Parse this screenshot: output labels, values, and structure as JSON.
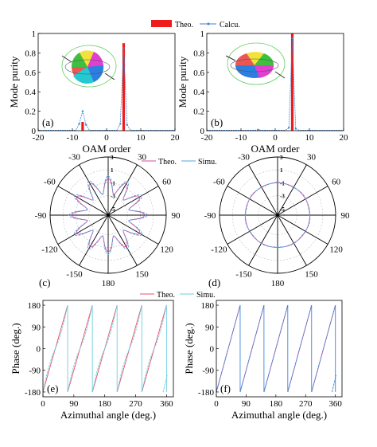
{
  "colors": {
    "theo_bar": "#ee1c1c",
    "calcu": "#3a86d8",
    "theo_line": "#d64ea3",
    "simu": "#4fa8df",
    "purple": "#8a3db2",
    "grid": "#bdbdbd"
  },
  "legend_top": {
    "theo": "Theo.",
    "calcu": "Calcu."
  },
  "legend_polar": {
    "theo": "Theo.",
    "simu": "Simu."
  },
  "legend_phase": {
    "theo": "Theo.",
    "simu": "Simu."
  },
  "chart_data": [
    {
      "id": "a",
      "type": "bar",
      "panel_label": "(a)",
      "xlabel": "OAM order",
      "ylabel": "Mode purity",
      "xlim": [
        -20,
        20
      ],
      "ylim": [
        0,
        1
      ],
      "xticks": [
        "-20",
        "-10",
        "0",
        "10",
        "20"
      ],
      "yticks": [
        "0",
        "0.2",
        "0.4",
        "0.6",
        "0.8",
        "1"
      ],
      "series": [
        {
          "name": "Theo.",
          "x": [
            -7,
            5
          ],
          "values": [
            0.09,
            0.9
          ]
        },
        {
          "name": "Calcu.",
          "x": [
            -8,
            -7,
            -6,
            4,
            5,
            6
          ],
          "values": [
            0.07,
            0.2,
            0.06,
            0.07,
            0.85,
            0.06
          ]
        }
      ]
    },
    {
      "id": "b",
      "type": "bar",
      "panel_label": "(b)",
      "xlabel": "OAM order",
      "ylabel": "Mode purity",
      "xlim": [
        -20,
        20
      ],
      "ylim": [
        0,
        1
      ],
      "xticks": [
        "-20",
        "-10",
        "0",
        "10",
        "20"
      ],
      "yticks": [
        "0",
        "0.2",
        "0.4",
        "0.6",
        "0.8",
        "1"
      ],
      "series": [
        {
          "name": "Theo.",
          "x": [
            5
          ],
          "values": [
            1.0
          ]
        },
        {
          "name": "Calcu.",
          "x": [
            4,
            5,
            6,
            -5
          ],
          "values": [
            0.03,
            0.95,
            0.02,
            0.01
          ]
        }
      ]
    },
    {
      "id": "c",
      "type": "line",
      "subtype": "polar",
      "panel_label": "(c)",
      "angle_labels": [
        "0",
        "30",
        "60",
        "90",
        "120",
        "150",
        "180",
        "-150",
        "-120",
        "-90",
        "-60",
        "-30"
      ],
      "radial_ticks": [
        "3",
        "1",
        "-1",
        "-3",
        "-5"
      ],
      "series": [
        {
          "name": "Theo.",
          "petals": 12,
          "r_mean": -1.5,
          "r_amp": 1.2
        },
        {
          "name": "Simu.",
          "petals": 12,
          "r_mean": -1.3,
          "r_amp": 1.4
        }
      ]
    },
    {
      "id": "d",
      "type": "line",
      "subtype": "polar",
      "panel_label": "(d)",
      "angle_labels": [
        "0",
        "30",
        "60",
        "90",
        "120",
        "150",
        "180",
        "-150",
        "-120",
        "-90",
        "-60",
        "-30"
      ],
      "radial_ticks": [
        "3",
        "1",
        "-1",
        "-3",
        "-5"
      ],
      "series": [
        {
          "name": "Theo.",
          "petals": 0,
          "r_mean": -1.0,
          "r_amp": 0
        },
        {
          "name": "Simu.",
          "petals": 0,
          "r_mean": -1.0,
          "r_amp": 0.08
        }
      ]
    },
    {
      "id": "e",
      "type": "line",
      "panel_label": "(e)",
      "xlabel": "Azimuthal angle (deg.)",
      "ylabel": "Phase (deg.)",
      "xlim": [
        0,
        380
      ],
      "ylim": [
        -200,
        200
      ],
      "xticks": [
        "0",
        "90",
        "180",
        "270",
        "360"
      ],
      "yticks": [
        "-180",
        "-90",
        "0",
        "90",
        "180"
      ],
      "wraps": 5,
      "series": [
        {
          "name": "Theo."
        },
        {
          "name": "Simu."
        }
      ]
    },
    {
      "id": "f",
      "type": "line",
      "panel_label": "(f)",
      "xlabel": "Azimuthal angle (deg.)",
      "ylabel": "Phase (deg.)",
      "xlim": [
        0,
        380
      ],
      "ylim": [
        -200,
        200
      ],
      "xticks": [
        "0",
        "90",
        "180",
        "270",
        "360"
      ],
      "yticks": [
        "-180",
        "-90",
        "0",
        "90",
        "180"
      ],
      "wraps": 5,
      "series": [
        {
          "name": "Theo."
        },
        {
          "name": "Simu."
        }
      ]
    }
  ]
}
